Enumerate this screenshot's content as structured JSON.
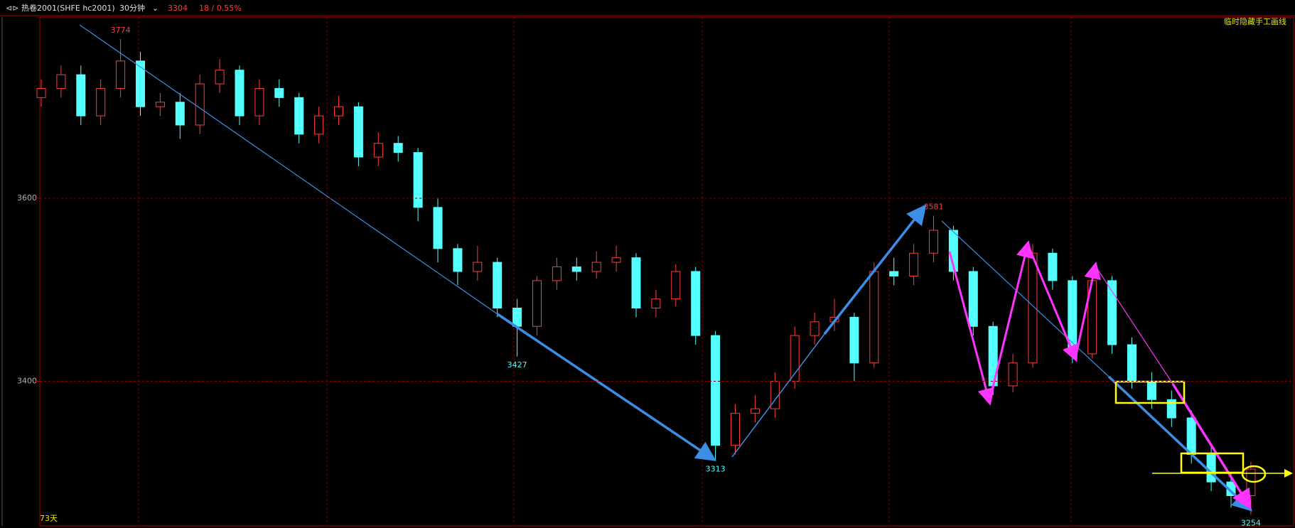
{
  "chart_data": {
    "type": "candlestick",
    "title": "热卷2001(SHFE hc2001)",
    "period": "30分钟",
    "change_label": "18 / 0.55%",
    "overlay_button": "临时隐藏手工画线",
    "span_label": "73天",
    "up_color": "#ff3c3c",
    "down_color": "#54ffff",
    "open": [
      3710,
      3720,
      3735,
      3690,
      3720,
      3750,
      3700,
      3705,
      3680,
      3725,
      3740,
      3690,
      3720,
      3710,
      3670,
      3690,
      3700,
      3645,
      3660,
      3650,
      3590,
      3545,
      3520,
      3530,
      3480,
      3460,
      3510,
      3525,
      3520,
      3530,
      3535,
      3480,
      3490,
      3520,
      3450,
      3330,
      3365,
      3370,
      3400,
      3450,
      3465,
      3470,
      3420,
      3520,
      3515,
      3540,
      3565,
      3520,
      3460,
      3395,
      3420,
      3540,
      3510,
      3430,
      3510,
      3440,
      3400,
      3380,
      3360,
      3320,
      3290,
      3275
    ],
    "high": [
      3730,
      3745,
      3745,
      3730,
      3774,
      3760,
      3715,
      3715,
      3735,
      3752,
      3745,
      3730,
      3730,
      3715,
      3700,
      3712,
      3705,
      3672,
      3668,
      3655,
      3600,
      3550,
      3548,
      3535,
      3490,
      3515,
      3535,
      3535,
      3542,
      3548,
      3540,
      3500,
      3528,
      3525,
      3455,
      3375,
      3385,
      3410,
      3460,
      3475,
      3490,
      3475,
      3530,
      3535,
      3550,
      3581,
      3570,
      3525,
      3465,
      3430,
      3550,
      3545,
      3515,
      3525,
      3515,
      3448,
      3410,
      3390,
      3368,
      3328,
      3300,
      3312
    ],
    "low": [
      3700,
      3710,
      3680,
      3680,
      3710,
      3690,
      3690,
      3665,
      3670,
      3715,
      3680,
      3680,
      3700,
      3660,
      3660,
      3680,
      3635,
      3635,
      3640,
      3575,
      3530,
      3505,
      3510,
      3470,
      3427,
      3450,
      3500,
      3510,
      3512,
      3520,
      3470,
      3470,
      3482,
      3440,
      3313,
      3320,
      3355,
      3360,
      3392,
      3440,
      3455,
      3400,
      3415,
      3505,
      3505,
      3530,
      3510,
      3450,
      3385,
      3388,
      3415,
      3500,
      3420,
      3425,
      3430,
      3392,
      3370,
      3350,
      3310,
      3280,
      3262,
      3254
    ],
    "close": [
      3720,
      3735,
      3690,
      3720,
      3750,
      3700,
      3705,
      3680,
      3725,
      3740,
      3690,
      3720,
      3710,
      3670,
      3690,
      3700,
      3645,
      3660,
      3650,
      3590,
      3545,
      3520,
      3530,
      3480,
      3460,
      3510,
      3525,
      3520,
      3530,
      3535,
      3480,
      3490,
      3520,
      3450,
      3330,
      3365,
      3370,
      3400,
      3450,
      3465,
      3470,
      3420,
      3520,
      3515,
      3540,
      3565,
      3520,
      3460,
      3395,
      3420,
      3540,
      3510,
      3430,
      3510,
      3440,
      3400,
      3380,
      3360,
      3320,
      3290,
      3275,
      3304
    ],
    "ylim": [
      3242,
      3798
    ],
    "yticks": [
      3400,
      3600
    ],
    "grid": true
  }
}
